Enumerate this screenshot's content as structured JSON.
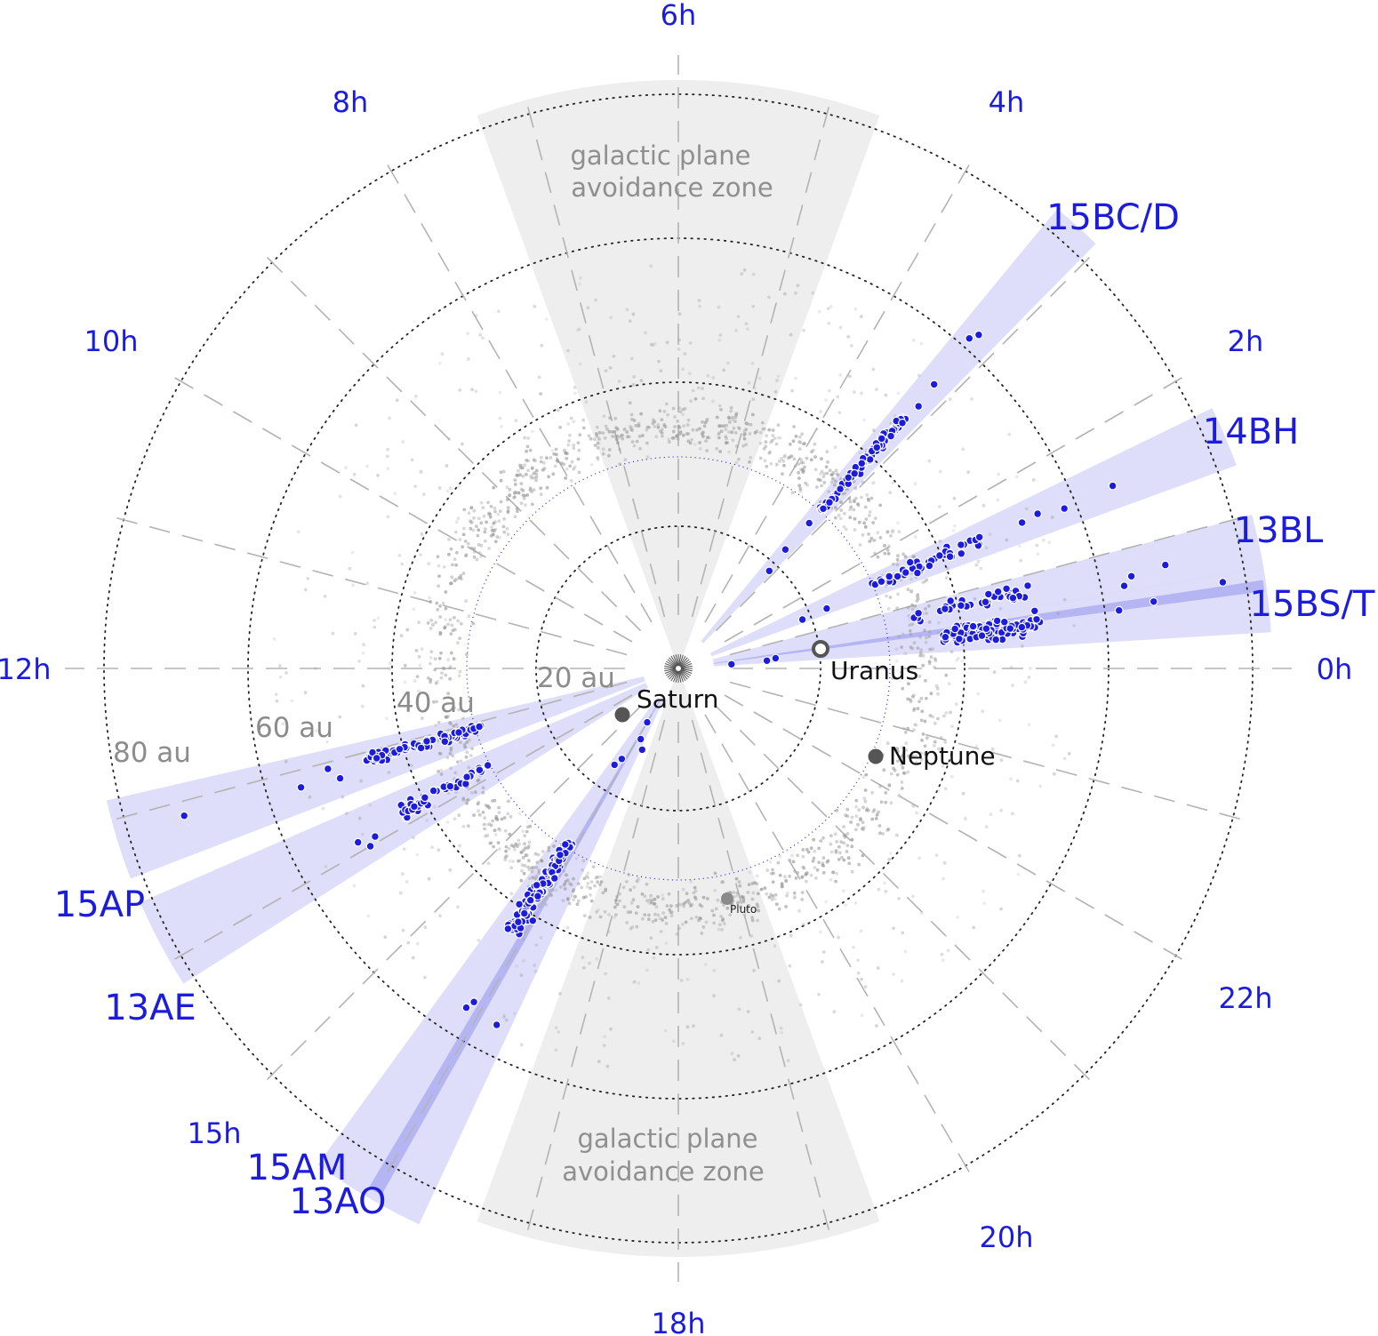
{
  "hour_labels": {
    "h0": "0h",
    "h2": "2h",
    "h4": "4h",
    "h6": "6h",
    "h8": "8h",
    "h10": "10h",
    "h12": "12h",
    "h15": "15h",
    "h18": "18h",
    "h20": "20h",
    "h22": "22h"
  },
  "au_labels": {
    "au20": "20 au",
    "au40": "40 au",
    "au60": "60 au",
    "au80": "80 au"
  },
  "zone_label": {
    "top_line1": "galactic plane",
    "top_line2": "avoidance zone",
    "bottom_line1": "galactic plane",
    "bottom_line2": "avoidance zone"
  },
  "planets": {
    "saturn": "Saturn",
    "uranus": "Uranus",
    "neptune": "Neptune",
    "pluto": "Pluto"
  },
  "fields": {
    "f15bcd": "15BC/D",
    "f14bh": "14BH",
    "f13bl": "13BL",
    "f15bst": "15BS/T",
    "f15ap": "15AP",
    "f13ae": "13AE",
    "f15am": "15AM",
    "f13ao": "13AO"
  },
  "colors": {
    "accent_blue": "#1c1cdc",
    "wedge_fill": "#dcdcfa",
    "avoidance_gray": "#eeeeee",
    "background_dots": "#b4b4b4",
    "planet_gray": "#555555"
  },
  "icons": {
    "sun": "sun-icon"
  }
}
